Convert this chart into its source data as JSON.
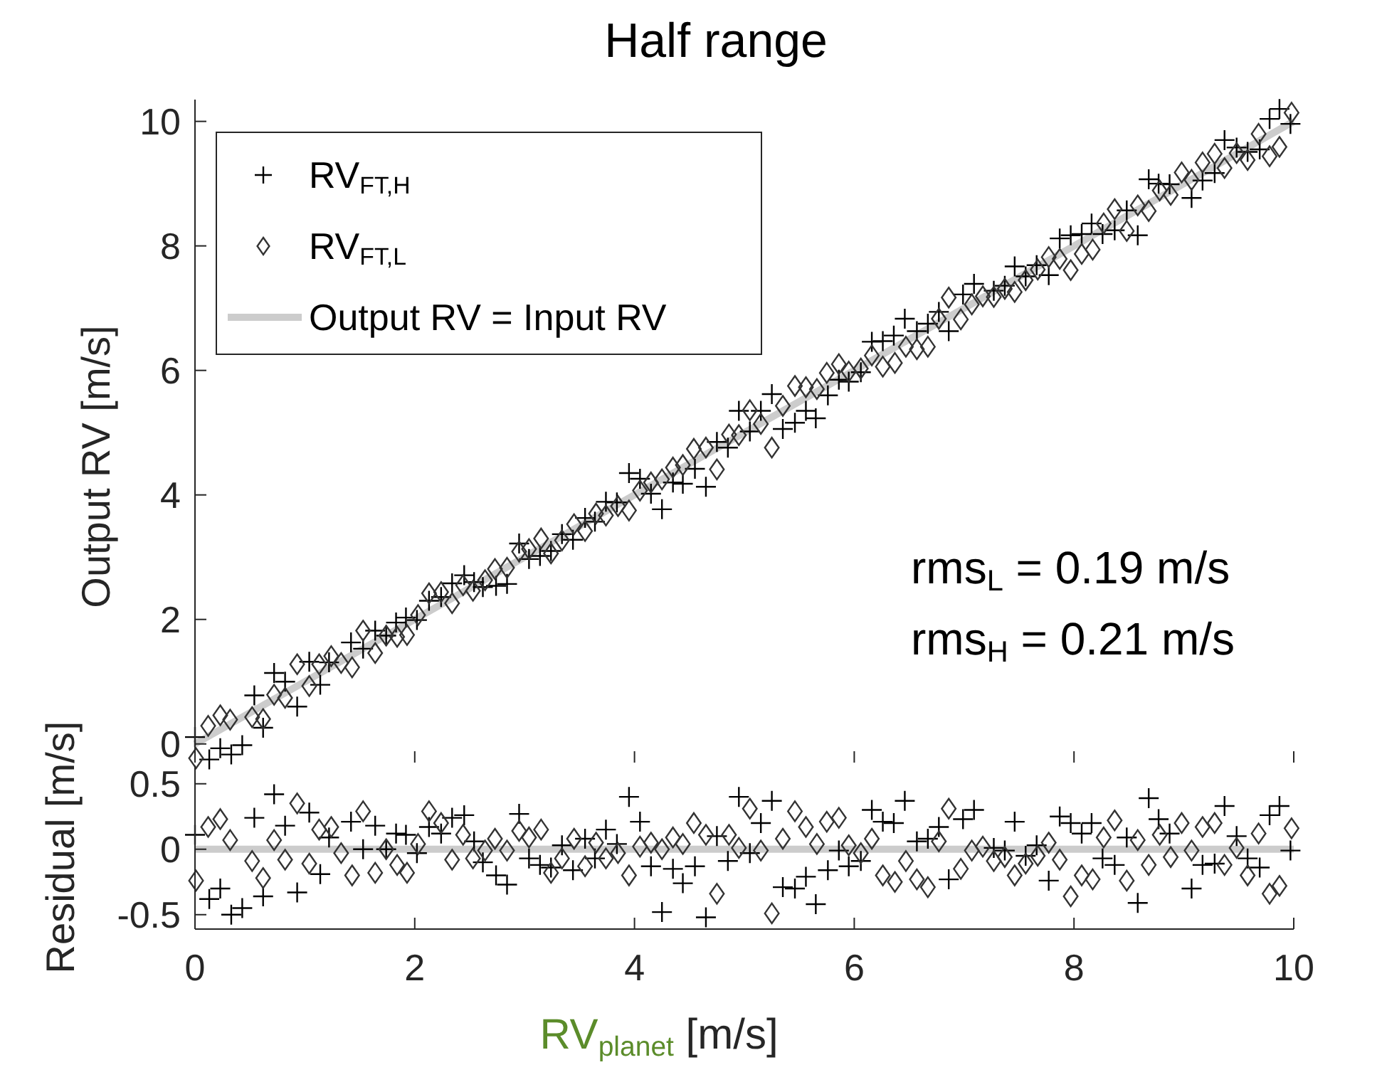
{
  "chart_data": [
    {
      "type": "scatter",
      "title": "Half range",
      "ylabel": "Output RV [m/s]",
      "xlim": [
        0,
        10
      ],
      "ylim": [
        -0.3,
        10.35
      ],
      "xticks": [
        0,
        2,
        4,
        6,
        8,
        10
      ],
      "yticks": [
        0,
        2,
        4,
        6,
        8,
        10
      ],
      "tick_labels": "y",
      "grid": false,
      "legend": "top left",
      "annotations": [
        "rms$_{L}$ = 0.19 m/s",
        "rms$_{H}$ = 0.21 m/s"
      ],
      "series": [
        {
          "name": "RV$_{FT,H}$",
          "marker": "cross",
          "color": "#000000",
          "x": [
            0,
            0.13,
            0.23,
            0.33,
            0.43,
            0.54,
            0.62,
            0.72,
            0.82,
            0.93,
            1.04,
            1.14,
            1.22,
            1.42,
            1.53,
            1.64,
            1.74,
            1.83,
            1.92,
            2.02,
            2.13,
            2.24,
            2.34,
            2.45,
            2.54,
            2.62,
            2.74,
            2.84,
            2.95,
            3.04,
            3.14,
            3.24,
            3.34,
            3.44,
            3.55,
            3.64,
            3.74,
            3.84,
            3.95,
            4.05,
            4.15,
            4.25,
            4.35,
            4.44,
            4.55,
            4.65,
            4.75,
            4.85,
            4.95,
            5.05,
            5.15,
            5.25,
            5.35,
            5.46,
            5.56,
            5.65,
            5.76,
            5.86,
            5.95,
            6.06,
            6.16,
            6.26,
            6.36,
            6.46,
            6.57,
            6.67,
            6.77,
            6.86,
            6.99,
            7.09,
            7.27,
            7.37,
            7.46,
            7.56,
            7.66,
            7.77,
            7.87,
            7.97,
            8.07,
            8.16,
            8.26,
            8.37,
            8.48,
            8.58,
            8.68,
            8.77,
            8.87,
            9.07,
            9.17,
            9.28,
            9.37,
            9.48,
            9.58,
            9.69,
            9.78,
            9.87,
            9.97
          ],
          "values": [
            0.11,
            -0.25,
            -0.07,
            -0.17,
            -0.02,
            0.78,
            0.26,
            1.14,
            1.0,
            0.6,
            1.32,
            0.95,
            1.31,
            1.63,
            1.53,
            1.82,
            1.74,
            1.95,
            2.03,
            1.99,
            2.3,
            2.36,
            2.58,
            2.71,
            2.6,
            2.52,
            2.54,
            2.57,
            3.22,
            2.97,
            3.02,
            3.1,
            3.37,
            3.28,
            3.63,
            3.57,
            3.89,
            3.88,
            4.35,
            4.26,
            4.02,
            3.77,
            4.2,
            4.18,
            4.42,
            4.13,
            4.85,
            4.76,
            5.35,
            5.02,
            5.35,
            5.62,
            5.06,
            5.16,
            5.35,
            5.23,
            5.6,
            5.85,
            5.82,
            5.97,
            6.46,
            6.47,
            6.56,
            6.83,
            6.63,
            6.75,
            6.94,
            6.63,
            7.22,
            7.39,
            7.28,
            7.36,
            7.67,
            7.51,
            7.69,
            7.53,
            8.12,
            8.17,
            8.19,
            8.36,
            8.19,
            8.25,
            8.57,
            8.17,
            9.07,
            9.0,
            8.99,
            8.77,
            9.05,
            9.17,
            9.7,
            9.58,
            9.51,
            9.55,
            10.04,
            10.2,
            9.96
          ]
        },
        {
          "name": "RV$_{FT,L}$",
          "marker": "diamond",
          "color": "#333333",
          "x": [
            0.01,
            0.12,
            0.23,
            0.32,
            0.52,
            0.62,
            0.72,
            0.82,
            0.93,
            1.04,
            1.13,
            1.24,
            1.33,
            1.43,
            1.53,
            1.64,
            1.74,
            1.84,
            1.93,
            2.03,
            2.13,
            2.24,
            2.34,
            2.44,
            2.53,
            2.64,
            2.73,
            2.84,
            2.95,
            3.04,
            3.15,
            3.24,
            3.34,
            3.45,
            3.55,
            3.65,
            3.74,
            3.85,
            3.95,
            4.05,
            4.15,
            4.25,
            4.35,
            4.44,
            4.54,
            4.65,
            4.75,
            4.86,
            4.95,
            5.05,
            5.15,
            5.25,
            5.35,
            5.46,
            5.56,
            5.66,
            5.75,
            5.86,
            5.95,
            6.06,
            6.16,
            6.26,
            6.37,
            6.47,
            6.57,
            6.67,
            6.77,
            6.86,
            6.97,
            7.07,
            7.17,
            7.27,
            7.37,
            7.46,
            7.56,
            7.67,
            7.77,
            7.87,
            7.97,
            8.07,
            8.17,
            8.27,
            8.37,
            8.48,
            8.58,
            8.68,
            8.78,
            8.88,
            8.98,
            9.07,
            9.17,
            9.28,
            9.37,
            9.48,
            9.58,
            9.68,
            9.78,
            9.87,
            9.98
          ],
          "values": [
            -0.23,
            0.29,
            0.46,
            0.39,
            0.43,
            0.4,
            0.79,
            0.74,
            1.28,
            0.93,
            1.28,
            1.41,
            1.3,
            1.23,
            1.82,
            1.46,
            1.74,
            1.72,
            1.75,
            2.07,
            2.42,
            2.44,
            2.26,
            2.55,
            2.46,
            2.63,
            2.81,
            2.83,
            3.09,
            3.13,
            3.3,
            3.06,
            3.27,
            3.53,
            3.42,
            3.7,
            3.67,
            3.82,
            3.75,
            4.07,
            4.2,
            4.25,
            4.44,
            4.48,
            4.74,
            4.76,
            4.41,
            4.97,
            4.96,
            5.36,
            5.14,
            4.76,
            5.43,
            5.75,
            5.73,
            5.7,
            5.96,
            6.1,
            5.98,
            6.03,
            6.24,
            6.06,
            6.12,
            6.38,
            6.34,
            6.38,
            6.83,
            7.17,
            6.82,
            7.06,
            7.19,
            7.18,
            7.31,
            7.26,
            7.45,
            7.62,
            7.82,
            7.79,
            7.61,
            7.87,
            7.94,
            8.36,
            8.59,
            8.24,
            8.65,
            8.56,
            8.89,
            8.82,
            9.18,
            9.06,
            9.34,
            9.48,
            9.25,
            9.49,
            9.38,
            9.8,
            9.44,
            9.59,
            10.14
          ]
        },
        {
          "name": "Output RV = Input RV",
          "type": "line",
          "color": "#cccccc",
          "x": [
            0,
            10
          ],
          "values": [
            0,
            10
          ]
        }
      ]
    },
    {
      "type": "scatter",
      "xlabel": "RV$_{planet}$  [m/s]",
      "ylabel": "Residual [m/s]",
      "xlim": [
        0,
        10
      ],
      "ylim": [
        -0.61,
        0.64
      ],
      "xticks": [
        0,
        2,
        4,
        6,
        8,
        10
      ],
      "yticks": [
        {
          "value": -0.5,
          "label": "-0.5"
        },
        0,
        0.5
      ],
      "grid": false,
      "series": [
        {
          "type": "line",
          "color": "#cccccc",
          "x": [
            0,
            10
          ],
          "values": [
            0,
            0
          ]
        },
        {
          "marker": "cross",
          "color": "#000000",
          "x": [
            0,
            0.13,
            0.23,
            0.33,
            0.43,
            0.54,
            0.62,
            0.72,
            0.82,
            0.93,
            1.04,
            1.14,
            1.22,
            1.42,
            1.53,
            1.64,
            1.74,
            1.83,
            1.92,
            2.02,
            2.13,
            2.24,
            2.34,
            2.45,
            2.54,
            2.62,
            2.74,
            2.84,
            2.95,
            3.04,
            3.14,
            3.24,
            3.34,
            3.44,
            3.55,
            3.64,
            3.74,
            3.84,
            3.95,
            4.05,
            4.15,
            4.25,
            4.35,
            4.44,
            4.55,
            4.65,
            4.75,
            4.85,
            4.95,
            5.05,
            5.15,
            5.25,
            5.35,
            5.46,
            5.56,
            5.65,
            5.76,
            5.86,
            5.95,
            6.06,
            6.16,
            6.26,
            6.36,
            6.46,
            6.57,
            6.67,
            6.77,
            6.86,
            6.99,
            7.09,
            7.27,
            7.37,
            7.46,
            7.56,
            7.66,
            7.77,
            7.87,
            7.97,
            8.07,
            8.16,
            8.26,
            8.37,
            8.48,
            8.58,
            8.68,
            8.77,
            8.87,
            9.07,
            9.17,
            9.28,
            9.37,
            9.48,
            9.58,
            9.69,
            9.78,
            9.87,
            9.97
          ],
          "values": [
            0.11,
            -0.38,
            -0.3,
            -0.5,
            -0.45,
            0.24,
            -0.36,
            0.42,
            0.18,
            -0.33,
            0.28,
            -0.19,
            0.09,
            0.21,
            0,
            0.18,
            0,
            0.12,
            0.11,
            -0.03,
            0.17,
            0.12,
            0.24,
            0.26,
            0.06,
            -0.1,
            -0.2,
            -0.27,
            0.27,
            -0.07,
            -0.12,
            -0.14,
            0.03,
            -0.16,
            0.08,
            -0.07,
            0.15,
            0.04,
            0.4,
            0.21,
            -0.13,
            -0.48,
            -0.15,
            -0.26,
            -0.13,
            -0.52,
            0.1,
            -0.09,
            0.4,
            -0.03,
            0.2,
            0.37,
            -0.29,
            -0.3,
            -0.21,
            -0.42,
            -0.16,
            -0.01,
            -0.13,
            -0.09,
            0.3,
            0.21,
            0.2,
            0.37,
            0.06,
            0.08,
            0.17,
            -0.23,
            0.23,
            0.3,
            0.01,
            -0.01,
            0.21,
            -0.05,
            0.03,
            -0.24,
            0.25,
            0.2,
            0.12,
            0.2,
            -0.07,
            -0.12,
            0.09,
            -0.41,
            0.39,
            0.23,
            0.12,
            -0.3,
            -0.12,
            -0.11,
            0.33,
            0.1,
            -0.07,
            -0.14,
            0.26,
            0.33,
            -0.01
          ]
        },
        {
          "marker": "diamond",
          "color": "#333333",
          "x": [
            0.01,
            0.12,
            0.23,
            0.32,
            0.52,
            0.62,
            0.72,
            0.82,
            0.93,
            1.04,
            1.13,
            1.24,
            1.33,
            1.43,
            1.53,
            1.64,
            1.74,
            1.84,
            1.93,
            2.03,
            2.13,
            2.24,
            2.34,
            2.44,
            2.53,
            2.64,
            2.73,
            2.84,
            2.95,
            3.04,
            3.15,
            3.24,
            3.34,
            3.45,
            3.55,
            3.65,
            3.74,
            3.85,
            3.95,
            4.05,
            4.15,
            4.25,
            4.35,
            4.44,
            4.54,
            4.65,
            4.75,
            4.86,
            4.95,
            5.05,
            5.15,
            5.25,
            5.35,
            5.46,
            5.56,
            5.66,
            5.75,
            5.86,
            5.95,
            6.06,
            6.16,
            6.26,
            6.37,
            6.47,
            6.57,
            6.67,
            6.77,
            6.86,
            6.97,
            7.07,
            7.17,
            7.27,
            7.37,
            7.46,
            7.56,
            7.67,
            7.77,
            7.87,
            7.97,
            8.07,
            8.17,
            8.27,
            8.37,
            8.48,
            8.58,
            8.68,
            8.78,
            8.88,
            8.98,
            9.07,
            9.17,
            9.28,
            9.37,
            9.48,
            9.58,
            9.68,
            9.78,
            9.87,
            9.98
          ],
          "values": [
            -0.24,
            0.17,
            0.23,
            0.07,
            -0.09,
            -0.22,
            0.07,
            -0.08,
            0.35,
            -0.11,
            0.15,
            0.17,
            -0.03,
            -0.2,
            0.29,
            -0.18,
            0,
            -0.12,
            -0.18,
            0.04,
            0.29,
            0.2,
            -0.08,
            0.11,
            -0.07,
            -0.01,
            0.08,
            -0.01,
            0.14,
            0.09,
            0.15,
            -0.18,
            -0.07,
            0.08,
            -0.13,
            0.05,
            -0.07,
            -0.03,
            -0.2,
            0.02,
            0.05,
            0,
            0.09,
            0.04,
            0.2,
            0.11,
            -0.34,
            0.11,
            0.01,
            0.31,
            -0.01,
            -0.49,
            0.08,
            0.29,
            0.17,
            0.04,
            0.21,
            0.24,
            0.03,
            -0.03,
            0.08,
            -0.2,
            -0.25,
            -0.09,
            -0.23,
            -0.29,
            0.06,
            0.31,
            -0.15,
            -0.01,
            0.02,
            -0.09,
            -0.06,
            -0.2,
            -0.11,
            -0.05,
            0.05,
            -0.08,
            -0.36,
            -0.2,
            -0.23,
            0.09,
            0.22,
            -0.24,
            0.07,
            -0.12,
            0.11,
            -0.06,
            0.2,
            -0.01,
            0.17,
            0.2,
            -0.12,
            0.01,
            -0.2,
            0.12,
            -0.34,
            -0.28,
            0.16
          ]
        }
      ]
    }
  ]
}
